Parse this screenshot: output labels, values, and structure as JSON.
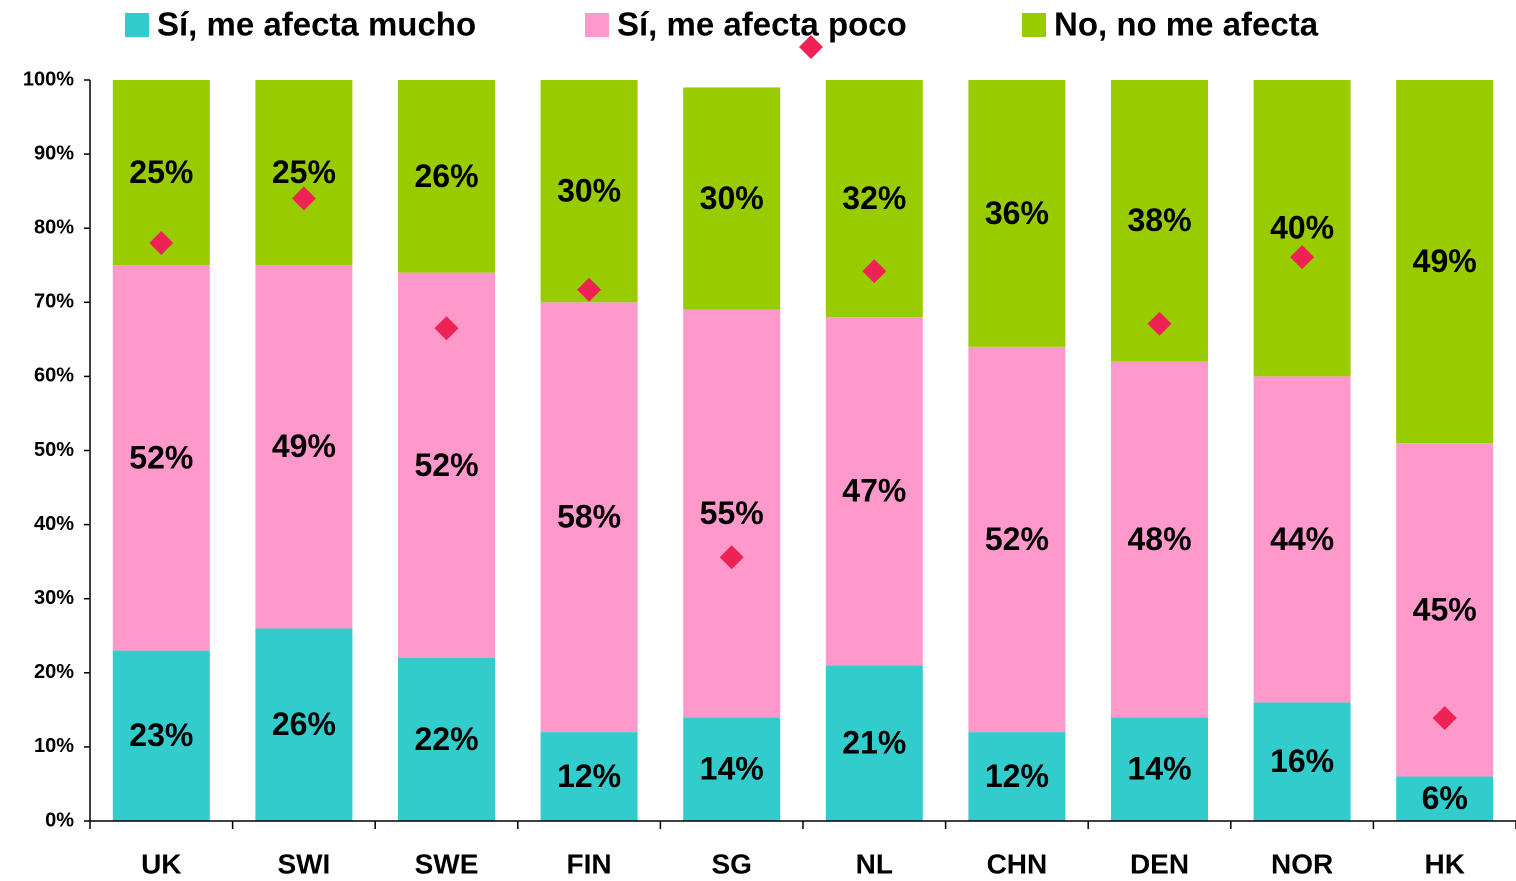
{
  "chart_data": {
    "type": "stacked_bar",
    "categories": [
      "UK",
      "SWI",
      "SWE",
      "FIN",
      "SG",
      "NL",
      "CHN",
      "DEN",
      "NOR",
      "HK"
    ],
    "series": [
      {
        "name": "Sí, me afecta mucho",
        "color": "#33cccc",
        "values": [
          23,
          26,
          22,
          12,
          14,
          21,
          12,
          14,
          16,
          6
        ],
        "value_labels": [
          "23%",
          "26%",
          "22%",
          "12%",
          "14%",
          "21%",
          "12%",
          "14%",
          "16%",
          "6%"
        ]
      },
      {
        "name": "Sí, me afecta poco",
        "color": "#ff99cc",
        "values": [
          52,
          49,
          52,
          58,
          55,
          47,
          52,
          48,
          44,
          45
        ],
        "value_labels": [
          "52%",
          "49%",
          "52%",
          "58%",
          "55%",
          "47%",
          "52%",
          "48%",
          "44%",
          "45%"
        ]
      },
      {
        "name": "No, no me afecta",
        "color": "#99cc00",
        "values": [
          25,
          25,
          26,
          30,
          30,
          32,
          36,
          38,
          40,
          49
        ],
        "value_labels": [
          "25%",
          "25%",
          "26%",
          "30%",
          "30%",
          "32%",
          "36%",
          "38%",
          "40%",
          "49%"
        ]
      },
      {
        "type": "scatter",
        "marker": "diamond",
        "color": "#ee2255",
        "values": [
          78,
          84,
          66.5,
          71.7,
          35.6,
          74.2,
          null,
          67.1,
          76.1,
          13.9
        ]
      }
    ],
    "ylim": [
      0,
      100
    ],
    "yticks": [
      {
        "value": 0,
        "label": "0%"
      },
      {
        "value": 10,
        "label": "10%"
      },
      {
        "value": 20,
        "label": "20%"
      },
      {
        "value": 30,
        "label": "30%"
      },
      {
        "value": 40,
        "label": "40%"
      },
      {
        "value": 50,
        "label": "50%"
      },
      {
        "value": 60,
        "label": "60%"
      },
      {
        "value": 70,
        "label": "70%"
      },
      {
        "value": 80,
        "label": "80%"
      },
      {
        "value": 90,
        "label": "90%"
      },
      {
        "value": 100,
        "label": "100%"
      }
    ],
    "legend": "top"
  }
}
